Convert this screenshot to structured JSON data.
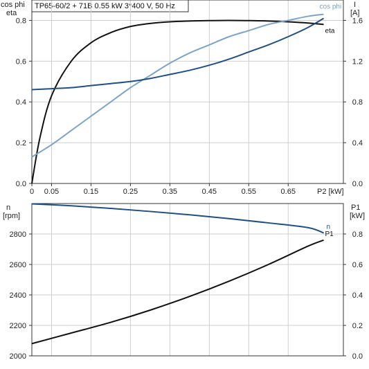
{
  "title": "TP65-60/2 + 71B   0.55 kW   3*400 V, 50 Hz",
  "colors": {
    "eta": "#111111",
    "cos_phi": "#7ba4c8",
    "current": "#1f4f86",
    "speed": "#1f4f86",
    "p1": "#111111",
    "grid": "#cfcfcf",
    "frame": "#333333"
  },
  "chart_data": [
    {
      "type": "line",
      "xlabel": "P2 [kW]",
      "y_left_label": [
        "cos phi",
        "eta"
      ],
      "y_right_label": [
        "I",
        "[A]"
      ],
      "xlim": [
        0,
        0.79
      ],
      "xticks": [
        0,
        0.05,
        0.15,
        0.25,
        0.35,
        0.45,
        0.55,
        0.65
      ],
      "xtick_labels": [
        "0",
        "0.05",
        "0.15",
        "0.25",
        "0.35",
        "0.45",
        "0.55",
        "0.65"
      ],
      "ylim_left": [
        0,
        0.9
      ],
      "yticks_left": [
        0,
        0.2,
        0.4,
        0.6,
        0.8
      ],
      "ytick_labels_left": [
        "0.0",
        "0.2",
        "0.4",
        "0.6",
        "0.8"
      ],
      "ylim_right": [
        0,
        1.8
      ],
      "yticks_right": [
        0,
        0.4,
        0.8,
        1.2,
        1.6
      ],
      "ytick_labels_right": [
        "0.0",
        "0.4",
        "0.8",
        "1.2",
        "1.6"
      ],
      "grid": true,
      "series": [
        {
          "name": "eta",
          "axis": "left",
          "x": [
            0,
            0.02,
            0.05,
            0.1,
            0.15,
            0.2,
            0.25,
            0.3,
            0.35,
            0.4,
            0.45,
            0.5,
            0.55,
            0.6,
            0.65,
            0.7,
            0.74
          ],
          "y": [
            0,
            0.22,
            0.43,
            0.6,
            0.69,
            0.74,
            0.77,
            0.785,
            0.793,
            0.797,
            0.799,
            0.8,
            0.799,
            0.797,
            0.793,
            0.787,
            0.78
          ]
        },
        {
          "name": "cos phi",
          "axis": "left",
          "x": [
            0,
            0.05,
            0.1,
            0.15,
            0.2,
            0.25,
            0.3,
            0.35,
            0.4,
            0.45,
            0.5,
            0.55,
            0.6,
            0.65,
            0.7,
            0.74
          ],
          "y": [
            0.13,
            0.19,
            0.26,
            0.33,
            0.4,
            0.47,
            0.53,
            0.59,
            0.64,
            0.68,
            0.72,
            0.75,
            0.78,
            0.8,
            0.82,
            0.83
          ]
        },
        {
          "name": "I",
          "axis": "right",
          "x": [
            0,
            0.05,
            0.1,
            0.15,
            0.2,
            0.25,
            0.3,
            0.35,
            0.4,
            0.45,
            0.5,
            0.55,
            0.6,
            0.65,
            0.7,
            0.74
          ],
          "y": [
            0.92,
            0.93,
            0.94,
            0.96,
            0.98,
            1.0,
            1.03,
            1.07,
            1.11,
            1.16,
            1.22,
            1.29,
            1.36,
            1.44,
            1.53,
            1.62
          ]
        }
      ]
    },
    {
      "type": "line",
      "y_left_label": [
        "n",
        "[rpm]"
      ],
      "y_right_label": [
        "P1",
        "[kW]"
      ],
      "xlim": [
        0,
        0.79
      ],
      "ylim_left": [
        2000,
        3000
      ],
      "yticks_left": [
        2000,
        2200,
        2400,
        2600,
        2800
      ],
      "ytick_labels_left": [
        "2000",
        "2200",
        "2400",
        "2600",
        "2800"
      ],
      "ylim_right": [
        0,
        1.0
      ],
      "yticks_right": [
        0,
        0.2,
        0.4,
        0.6,
        0.8
      ],
      "ytick_labels_right": [
        "0.0",
        "0.2",
        "0.4",
        "0.6",
        "0.8"
      ],
      "grid": true,
      "series": [
        {
          "name": "n",
          "axis": "left",
          "x": [
            0,
            0.1,
            0.2,
            0.3,
            0.4,
            0.5,
            0.6,
            0.7,
            0.74
          ],
          "y": [
            2998,
            2985,
            2968,
            2948,
            2926,
            2901,
            2873,
            2842,
            2807
          ]
        },
        {
          "name": "P1",
          "axis": "right",
          "x": [
            0,
            0.1,
            0.2,
            0.3,
            0.4,
            0.5,
            0.6,
            0.7,
            0.74
          ],
          "y": [
            0.08,
            0.15,
            0.22,
            0.3,
            0.39,
            0.49,
            0.6,
            0.72,
            0.76
          ]
        }
      ]
    }
  ]
}
